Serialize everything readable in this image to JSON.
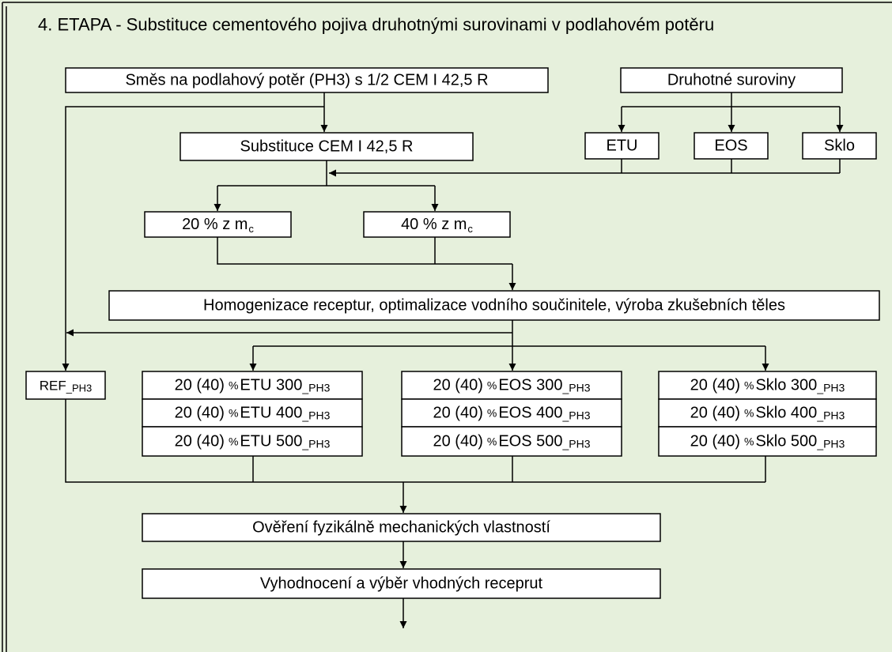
{
  "title": "4. ETAPA - Substituce cementového pojiva druhotnými surovinami v podlahovém potěru",
  "nodes": {
    "mix": "Směs na podlahový potěr (PH3) s 1/2 CEM I 42,5 R",
    "secondary": "Druhotné suroviny",
    "materials": [
      "ETU",
      "EOS",
      "Sklo"
    ],
    "substitution": "Substituce CEM I 42,5 R",
    "levels": [
      {
        "text": "20 % z m",
        "sub": "c"
      },
      {
        "text": "40 % z m",
        "sub": "c"
      }
    ],
    "homogenization": "Homogenizace receptur, optimalizace vodního součinitele, výroba zkušebních těles",
    "reference": {
      "text": "REF",
      "sub": "_PH3"
    },
    "groups": [
      [
        {
          "prefix": "20 (40)",
          "unit": "%",
          "name": "ETU 300",
          "sub": "_PH3"
        },
        {
          "prefix": "20 (40)",
          "unit": "%",
          "name": "ETU 400",
          "sub": "_PH3"
        },
        {
          "prefix": "20 (40)",
          "unit": "%",
          "name": "ETU 500",
          "sub": "_PH3"
        }
      ],
      [
        {
          "prefix": "20 (40)",
          "unit": "%",
          "name": "EOS 300",
          "sub": "_PH3"
        },
        {
          "prefix": "20 (40)",
          "unit": "%",
          "name": "EOS 400",
          "sub": "_PH3"
        },
        {
          "prefix": "20 (40)",
          "unit": "%",
          "name": "EOS 500",
          "sub": "_PH3"
        }
      ],
      [
        {
          "prefix": "20 (40)",
          "unit": "%",
          "name": "Sklo 300",
          "sub": "_PH3"
        },
        {
          "prefix": "20 (40)",
          "unit": "%",
          "name": "Sklo 400",
          "sub": "_PH3"
        },
        {
          "prefix": "20 (40)",
          "unit": "%",
          "name": "Sklo 500",
          "sub": "_PH3"
        }
      ]
    ],
    "verification": "Ověření fyzikálně mechanických vlastností",
    "evaluation": "Vyhodnocení a výběr vhodných receprut"
  }
}
